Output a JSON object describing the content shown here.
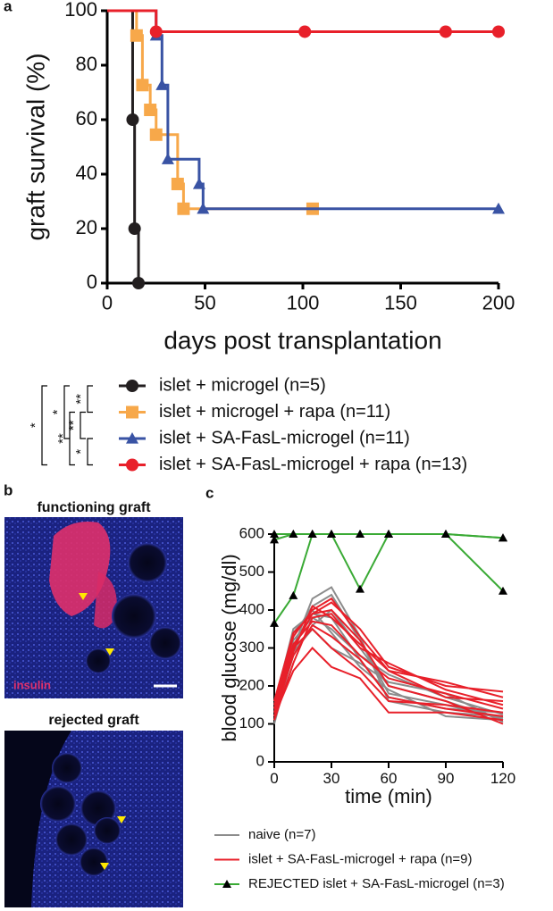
{
  "panel_labels": [
    "a",
    "b",
    "c"
  ],
  "panel_b": {
    "top_title": "functioning graft",
    "stain_label": "insulin",
    "bottom_title": "rejected graft"
  },
  "chart_data": [
    {
      "type": "step",
      "xlabel": "days post transplantation",
      "ylabel": "graft survival (%)",
      "xlim": [
        0,
        200
      ],
      "ylim": [
        0,
        100
      ],
      "xticks": [
        0,
        50,
        100,
        150,
        200
      ],
      "yticks": [
        0,
        20,
        40,
        60,
        80,
        100
      ],
      "series": [
        {
          "name": "islet + microgel (n=5)",
          "color": "#231f20",
          "marker": "circle",
          "x": [
            0,
            13,
            14,
            16
          ],
          "values": [
            100,
            60,
            20,
            0
          ]
        },
        {
          "name": "islet + microgel + rapa (n=11)",
          "color": "#f7a84a",
          "marker": "square",
          "x": [
            0,
            15,
            18,
            22,
            25,
            36,
            39,
            105
          ],
          "values": [
            100,
            90.9,
            72.7,
            63.6,
            54.5,
            36.4,
            27.3,
            27.3
          ]
        },
        {
          "name": "islet + SA-FasL-microgel (n=11)",
          "color": "#3953a4",
          "marker": "triangle",
          "x": [
            0,
            25,
            28,
            31,
            47,
            49,
            200
          ],
          "values": [
            100,
            90.9,
            72.7,
            45.5,
            36.4,
            27.3,
            27.3
          ]
        },
        {
          "name": "islet + SA-FasL-microgel + rapa (n=13)",
          "color": "#e8202a",
          "marker": "circle",
          "x": [
            0,
            25,
            101,
            173,
            200
          ],
          "values": [
            100,
            92.3,
            92.3,
            92.3,
            92.3
          ]
        }
      ],
      "significance": [
        "**",
        "*",
        "*",
        "**",
        "**",
        "*"
      ]
    },
    {
      "type": "multiline",
      "xlabel": "time (min)",
      "ylabel": "blood glucose (mg/dl)",
      "xlim": [
        0,
        120
      ],
      "ylim": [
        0,
        600
      ],
      "xticks": [
        0,
        30,
        60,
        90,
        120
      ],
      "yticks": [
        0,
        100,
        200,
        300,
        400,
        500,
        600
      ],
      "x": [
        0,
        10,
        20,
        30,
        45,
        60,
        90,
        120
      ],
      "series": [
        {
          "name": "naive (n=7)",
          "color": "#8c8c8c",
          "marker": "none",
          "lines": [
            [
              110,
              300,
              430,
              460,
              330,
              160,
              130,
              120
            ],
            [
              130,
              330,
              410,
              440,
              320,
              180,
              150,
              115
            ],
            [
              150,
              350,
              390,
              380,
              270,
              170,
              140,
              130
            ],
            [
              120,
              280,
              360,
              400,
              300,
              200,
              160,
              110
            ],
            [
              140,
              320,
              380,
              350,
              280,
              230,
              170,
              125
            ],
            [
              160,
              340,
              400,
              340,
              250,
              190,
              120,
              110
            ],
            [
              100,
              290,
              350,
              300,
              260,
              210,
              180,
              105
            ]
          ]
        },
        {
          "name": "islet + SA-FasL-microgel + rapa (n=9)",
          "color": "#e8202a",
          "marker": "none",
          "lines": [
            [
              120,
              300,
              390,
              420,
              350,
              250,
              200,
              185
            ],
            [
              140,
              330,
              400,
              430,
              330,
              240,
              170,
              160
            ],
            [
              110,
              260,
              380,
              390,
              300,
              260,
              190,
              150
            ],
            [
              150,
              310,
              370,
              360,
              280,
              220,
              180,
              140
            ],
            [
              130,
              280,
              360,
              330,
              270,
              170,
              140,
              120
            ],
            [
              120,
              240,
              300,
              250,
              220,
              130,
              130,
              110
            ],
            [
              160,
              340,
              390,
              400,
              320,
              200,
              160,
              100
            ],
            [
              140,
              300,
              350,
              300,
              240,
              160,
              150,
              130
            ],
            [
              110,
              290,
              410,
              380,
              310,
              240,
              210,
              170
            ]
          ]
        },
        {
          "name": "REJECTED islet + SA-FasL-microgel (n=3)",
          "color": "#3aaa35",
          "marker": "triangle",
          "lines": [
            [
              585,
              600,
              600,
              600,
              600,
              600,
              600,
              590
            ],
            [
              365,
              438,
              600,
              600,
              455,
              600,
              600,
              450
            ],
            [
              600,
              600,
              600,
              600,
              600,
              600,
              600,
              590
            ]
          ]
        }
      ]
    }
  ]
}
